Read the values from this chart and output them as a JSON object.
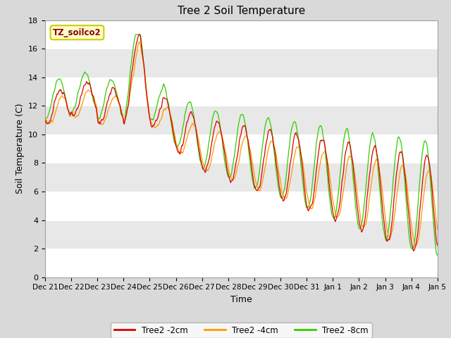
{
  "title": "Tree 2 Soil Temperature",
  "xlabel": "Time",
  "ylabel": "Soil Temperature (C)",
  "ylim": [
    0,
    18
  ],
  "legend_label": "TZ_soilco2",
  "series_labels": [
    "Tree2 -2cm",
    "Tree2 -4cm",
    "Tree2 -8cm"
  ],
  "series_colors": [
    "#dd0000",
    "#ff9900",
    "#33cc00"
  ],
  "band_colors": [
    "#ffffff",
    "#e8e8e8"
  ],
  "title_fontsize": 11,
  "axis_fontsize": 8,
  "tick_labels": [
    "Dec 21",
    "Dec 22",
    "Dec 23",
    "Dec 24",
    "Dec 25",
    "Dec 26",
    "Dec 27",
    "Dec 28",
    "Dec 29",
    "Dec 30",
    "Dec 31",
    "Jan 1",
    "Jan 2",
    "Jan 3",
    "Jan 4",
    "Jan 5"
  ],
  "yticks": [
    0,
    2,
    4,
    6,
    8,
    10,
    12,
    14,
    16,
    18
  ]
}
